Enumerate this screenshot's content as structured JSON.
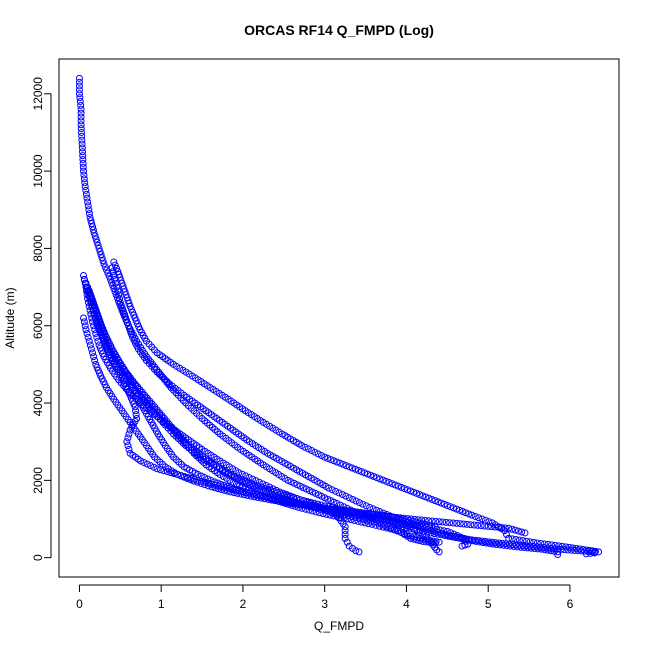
{
  "chart_data": {
    "type": "scatter",
    "title": "ORCAS RF14 Q_FMPD (Log)",
    "xlabel": "Q_FMPD",
    "ylabel": "Altitude (m)",
    "xlim": [
      -0.25,
      6.6
    ],
    "ylim": [
      -500,
      12900
    ],
    "xticks": [
      "0",
      "1",
      "2",
      "3",
      "4",
      "5",
      "6"
    ],
    "yticks": [
      "0",
      "2000",
      "4000",
      "6000",
      "8000",
      "10000",
      "12000"
    ],
    "grid": false,
    "legend": "none",
    "marker": "open-circle",
    "color": "#0000ff",
    "series": [
      {
        "values": [
          [
            0.0,
            12400
          ],
          [
            0.0,
            12000
          ],
          [
            0.02,
            11600
          ],
          [
            0.02,
            11200
          ],
          [
            0.03,
            10800
          ],
          [
            0.04,
            10400
          ],
          [
            0.05,
            10000
          ],
          [
            0.07,
            9600
          ],
          [
            0.1,
            9200
          ],
          [
            0.13,
            8800
          ],
          [
            0.18,
            8400
          ],
          [
            0.24,
            8000
          ],
          [
            0.3,
            7600
          ],
          [
            0.38,
            7200
          ],
          [
            0.45,
            6800
          ],
          [
            0.52,
            6400
          ],
          [
            0.6,
            6000
          ],
          [
            0.7,
            5600
          ],
          [
            0.82,
            5200
          ],
          [
            0.97,
            4800
          ],
          [
            1.12,
            4400
          ],
          [
            1.3,
            4000
          ],
          [
            1.5,
            3600
          ],
          [
            1.72,
            3200
          ],
          [
            1.97,
            2800
          ],
          [
            2.25,
            2400
          ],
          [
            2.55,
            2000
          ],
          [
            2.85,
            1700
          ],
          [
            3.15,
            1400
          ],
          [
            3.4,
            1150
          ],
          [
            3.7,
            950
          ],
          [
            4.0,
            780
          ],
          [
            4.3,
            640
          ],
          [
            4.6,
            520
          ],
          [
            4.85,
            420
          ],
          [
            5.1,
            340
          ],
          [
            5.4,
            270
          ],
          [
            5.65,
            220
          ],
          [
            5.85,
            150
          ],
          [
            5.85,
            80
          ]
        ]
      },
      {
        "values": [
          [
            0.42,
            7650
          ],
          [
            0.47,
            7400
          ],
          [
            0.52,
            7100
          ],
          [
            0.57,
            6800
          ],
          [
            0.62,
            6500
          ],
          [
            0.68,
            6200
          ],
          [
            0.74,
            5900
          ],
          [
            0.82,
            5600
          ],
          [
            0.95,
            5300
          ],
          [
            1.15,
            5000
          ],
          [
            1.38,
            4700
          ],
          [
            1.6,
            4400
          ],
          [
            1.82,
            4100
          ],
          [
            2.03,
            3800
          ],
          [
            2.25,
            3500
          ],
          [
            2.48,
            3200
          ],
          [
            2.72,
            2900
          ],
          [
            3.0,
            2600
          ],
          [
            3.3,
            2350
          ],
          [
            3.6,
            2100
          ],
          [
            3.9,
            1850
          ],
          [
            4.2,
            1600
          ],
          [
            4.5,
            1350
          ],
          [
            4.8,
            1100
          ],
          [
            5.05,
            900
          ],
          [
            5.2,
            700
          ],
          [
            5.25,
            500
          ],
          [
            5.6,
            380
          ],
          [
            5.95,
            280
          ],
          [
            6.2,
            200
          ],
          [
            6.35,
            150
          ],
          [
            6.3,
            120
          ],
          [
            6.2,
            100
          ]
        ]
      },
      {
        "values": [
          [
            0.4,
            7500
          ],
          [
            0.43,
            7200
          ],
          [
            0.47,
            6900
          ],
          [
            0.5,
            6600
          ],
          [
            0.55,
            6300
          ],
          [
            0.6,
            6000
          ],
          [
            0.65,
            5700
          ],
          [
            0.72,
            5400
          ],
          [
            0.82,
            5100
          ],
          [
            0.95,
            4800
          ],
          [
            1.1,
            4500
          ],
          [
            1.28,
            4200
          ],
          [
            1.48,
            3900
          ],
          [
            1.68,
            3600
          ],
          [
            1.88,
            3300
          ],
          [
            2.08,
            3000
          ],
          [
            2.3,
            2700
          ],
          [
            2.55,
            2400
          ],
          [
            2.8,
            2100
          ],
          [
            3.05,
            1800
          ],
          [
            3.3,
            1550
          ],
          [
            3.55,
            1300
          ],
          [
            3.8,
            1080
          ],
          [
            4.05,
            880
          ],
          [
            4.3,
            700
          ],
          [
            4.55,
            560
          ],
          [
            4.8,
            460
          ],
          [
            5.05,
            400
          ],
          [
            5.3,
            340
          ],
          [
            5.6,
            280
          ],
          [
            5.85,
            220
          ],
          [
            6.1,
            180
          ],
          [
            6.3,
            150
          ]
        ]
      },
      {
        "values": [
          [
            0.05,
            7300
          ],
          [
            0.08,
            7000
          ],
          [
            0.1,
            6700
          ],
          [
            0.13,
            6400
          ],
          [
            0.16,
            6100
          ],
          [
            0.2,
            5800
          ],
          [
            0.24,
            5500
          ],
          [
            0.3,
            5200
          ],
          [
            0.38,
            4900
          ],
          [
            0.48,
            4600
          ],
          [
            0.6,
            4300
          ],
          [
            0.75,
            4000
          ],
          [
            0.92,
            3700
          ],
          [
            1.1,
            3400
          ],
          [
            1.3,
            3100
          ],
          [
            1.5,
            2800
          ],
          [
            1.72,
            2500
          ],
          [
            1.95,
            2200
          ],
          [
            2.2,
            1950
          ],
          [
            2.45,
            1700
          ],
          [
            2.7,
            1500
          ],
          [
            2.95,
            1300
          ],
          [
            3.15,
            1100
          ],
          [
            3.25,
            800
          ],
          [
            3.25,
            500
          ],
          [
            3.3,
            300
          ],
          [
            3.38,
            180
          ],
          [
            3.42,
            150
          ]
        ]
      },
      {
        "values": [
          [
            0.06,
            7200
          ],
          [
            0.1,
            6900
          ],
          [
            0.14,
            6600
          ],
          [
            0.18,
            6300
          ],
          [
            0.22,
            6000
          ],
          [
            0.28,
            5700
          ],
          [
            0.34,
            5400
          ],
          [
            0.4,
            5100
          ],
          [
            0.48,
            4800
          ],
          [
            0.55,
            4500
          ],
          [
            0.62,
            4200
          ],
          [
            0.68,
            3900
          ],
          [
            0.7,
            3600
          ],
          [
            0.62,
            3300
          ],
          [
            0.58,
            3000
          ],
          [
            0.62,
            2700
          ],
          [
            0.75,
            2500
          ],
          [
            0.95,
            2300
          ],
          [
            1.2,
            2150
          ],
          [
            1.45,
            2000
          ],
          [
            1.7,
            1850
          ],
          [
            2.0,
            1700
          ],
          [
            2.3,
            1580
          ],
          [
            2.6,
            1450
          ],
          [
            2.9,
            1320
          ],
          [
            3.2,
            1200
          ],
          [
            3.5,
            1080
          ],
          [
            3.8,
            950
          ],
          [
            4.05,
            800
          ],
          [
            4.2,
            600
          ],
          [
            4.3,
            400
          ],
          [
            4.37,
            200
          ],
          [
            4.4,
            150
          ]
        ]
      },
      {
        "values": [
          [
            0.08,
            7100
          ],
          [
            0.12,
            6800
          ],
          [
            0.16,
            6500
          ],
          [
            0.2,
            6200
          ],
          [
            0.25,
            5900
          ],
          [
            0.3,
            5600
          ],
          [
            0.37,
            5300
          ],
          [
            0.45,
            5000
          ],
          [
            0.55,
            4700
          ],
          [
            0.66,
            4400
          ],
          [
            0.78,
            4100
          ],
          [
            0.9,
            3800
          ],
          [
            1.02,
            3500
          ],
          [
            1.15,
            3200
          ],
          [
            1.3,
            2900
          ],
          [
            1.48,
            2600
          ],
          [
            1.68,
            2350
          ],
          [
            1.9,
            2100
          ],
          [
            2.15,
            1880
          ],
          [
            2.42,
            1680
          ],
          [
            2.7,
            1500
          ],
          [
            3.0,
            1340
          ],
          [
            3.3,
            1200
          ],
          [
            3.6,
            1060
          ],
          [
            3.9,
            920
          ],
          [
            4.2,
            800
          ],
          [
            4.5,
            680
          ],
          [
            4.7,
            500
          ],
          [
            4.75,
            350
          ],
          [
            4.68,
            300
          ]
        ]
      },
      {
        "values": [
          [
            0.1,
            7000
          ],
          [
            0.15,
            6700
          ],
          [
            0.2,
            6400
          ],
          [
            0.25,
            6100
          ],
          [
            0.3,
            5800
          ],
          [
            0.36,
            5500
          ],
          [
            0.44,
            5200
          ],
          [
            0.53,
            4900
          ],
          [
            0.63,
            4600
          ],
          [
            0.74,
            4300
          ],
          [
            0.86,
            4000
          ],
          [
            0.98,
            3700
          ],
          [
            1.1,
            3400
          ],
          [
            1.24,
            3100
          ],
          [
            1.4,
            2800
          ],
          [
            1.58,
            2500
          ],
          [
            1.78,
            2200
          ],
          [
            2.0,
            1950
          ],
          [
            2.25,
            1720
          ],
          [
            2.5,
            1520
          ],
          [
            2.78,
            1340
          ],
          [
            3.08,
            1180
          ],
          [
            3.38,
            1040
          ],
          [
            3.65,
            900
          ],
          [
            3.9,
            700
          ],
          [
            4.05,
            500
          ],
          [
            4.2,
            420
          ],
          [
            4.35,
            380
          ]
        ]
      },
      {
        "values": [
          [
            0.12,
            6900
          ],
          [
            0.17,
            6600
          ],
          [
            0.22,
            6300
          ],
          [
            0.27,
            6000
          ],
          [
            0.33,
            5700
          ],
          [
            0.4,
            5400
          ],
          [
            0.48,
            5100
          ],
          [
            0.57,
            4800
          ],
          [
            0.68,
            4500
          ],
          [
            0.8,
            4200
          ],
          [
            0.92,
            3900
          ],
          [
            1.04,
            3600
          ],
          [
            1.16,
            3300
          ],
          [
            1.28,
            3000
          ],
          [
            1.4,
            2700
          ],
          [
            1.55,
            2400
          ],
          [
            1.72,
            2150
          ],
          [
            1.92,
            1900
          ],
          [
            2.15,
            1680
          ],
          [
            2.4,
            1480
          ],
          [
            2.68,
            1300
          ],
          [
            2.98,
            1140
          ],
          [
            3.28,
            1000
          ],
          [
            3.58,
            860
          ],
          [
            3.85,
            720
          ],
          [
            4.05,
            560
          ],
          [
            4.25,
            460
          ],
          [
            4.4,
            400
          ]
        ]
      },
      {
        "values": [
          [
            0.05,
            6200
          ],
          [
            0.08,
            5900
          ],
          [
            0.12,
            5600
          ],
          [
            0.16,
            5300
          ],
          [
            0.2,
            5000
          ],
          [
            0.26,
            4700
          ],
          [
            0.33,
            4400
          ],
          [
            0.42,
            4100
          ],
          [
            0.52,
            3800
          ],
          [
            0.62,
            3500
          ],
          [
            0.72,
            3200
          ],
          [
            0.82,
            2900
          ],
          [
            0.92,
            2600
          ],
          [
            1.05,
            2350
          ],
          [
            1.2,
            2150
          ],
          [
            1.4,
            1980
          ],
          [
            1.62,
            1830
          ],
          [
            1.85,
            1700
          ],
          [
            2.1,
            1590
          ],
          [
            2.35,
            1490
          ],
          [
            2.6,
            1400
          ],
          [
            2.85,
            1320
          ],
          [
            3.1,
            1250
          ],
          [
            3.4,
            1180
          ],
          [
            3.7,
            1100
          ],
          [
            3.95,
            1000
          ],
          [
            4.15,
            900
          ],
          [
            4.35,
            800
          ]
        ]
      },
      {
        "values": [
          [
            0.6,
            4700
          ],
          [
            0.66,
            4400
          ],
          [
            0.72,
            4100
          ],
          [
            0.8,
            3800
          ],
          [
            0.88,
            3500
          ],
          [
            0.96,
            3200
          ],
          [
            1.05,
            2900
          ],
          [
            1.15,
            2600
          ],
          [
            1.28,
            2350
          ],
          [
            1.45,
            2150
          ],
          [
            1.65,
            1960
          ],
          [
            1.88,
            1790
          ],
          [
            2.12,
            1640
          ],
          [
            2.38,
            1510
          ],
          [
            2.65,
            1400
          ],
          [
            2.92,
            1300
          ],
          [
            3.2,
            1210
          ],
          [
            3.5,
            1130
          ],
          [
            3.8,
            1060
          ],
          [
            4.1,
            990
          ],
          [
            4.4,
            930
          ],
          [
            4.7,
            870
          ],
          [
            5.0,
            810
          ],
          [
            5.25,
            760
          ],
          [
            5.45,
            640
          ]
        ]
      }
    ]
  }
}
